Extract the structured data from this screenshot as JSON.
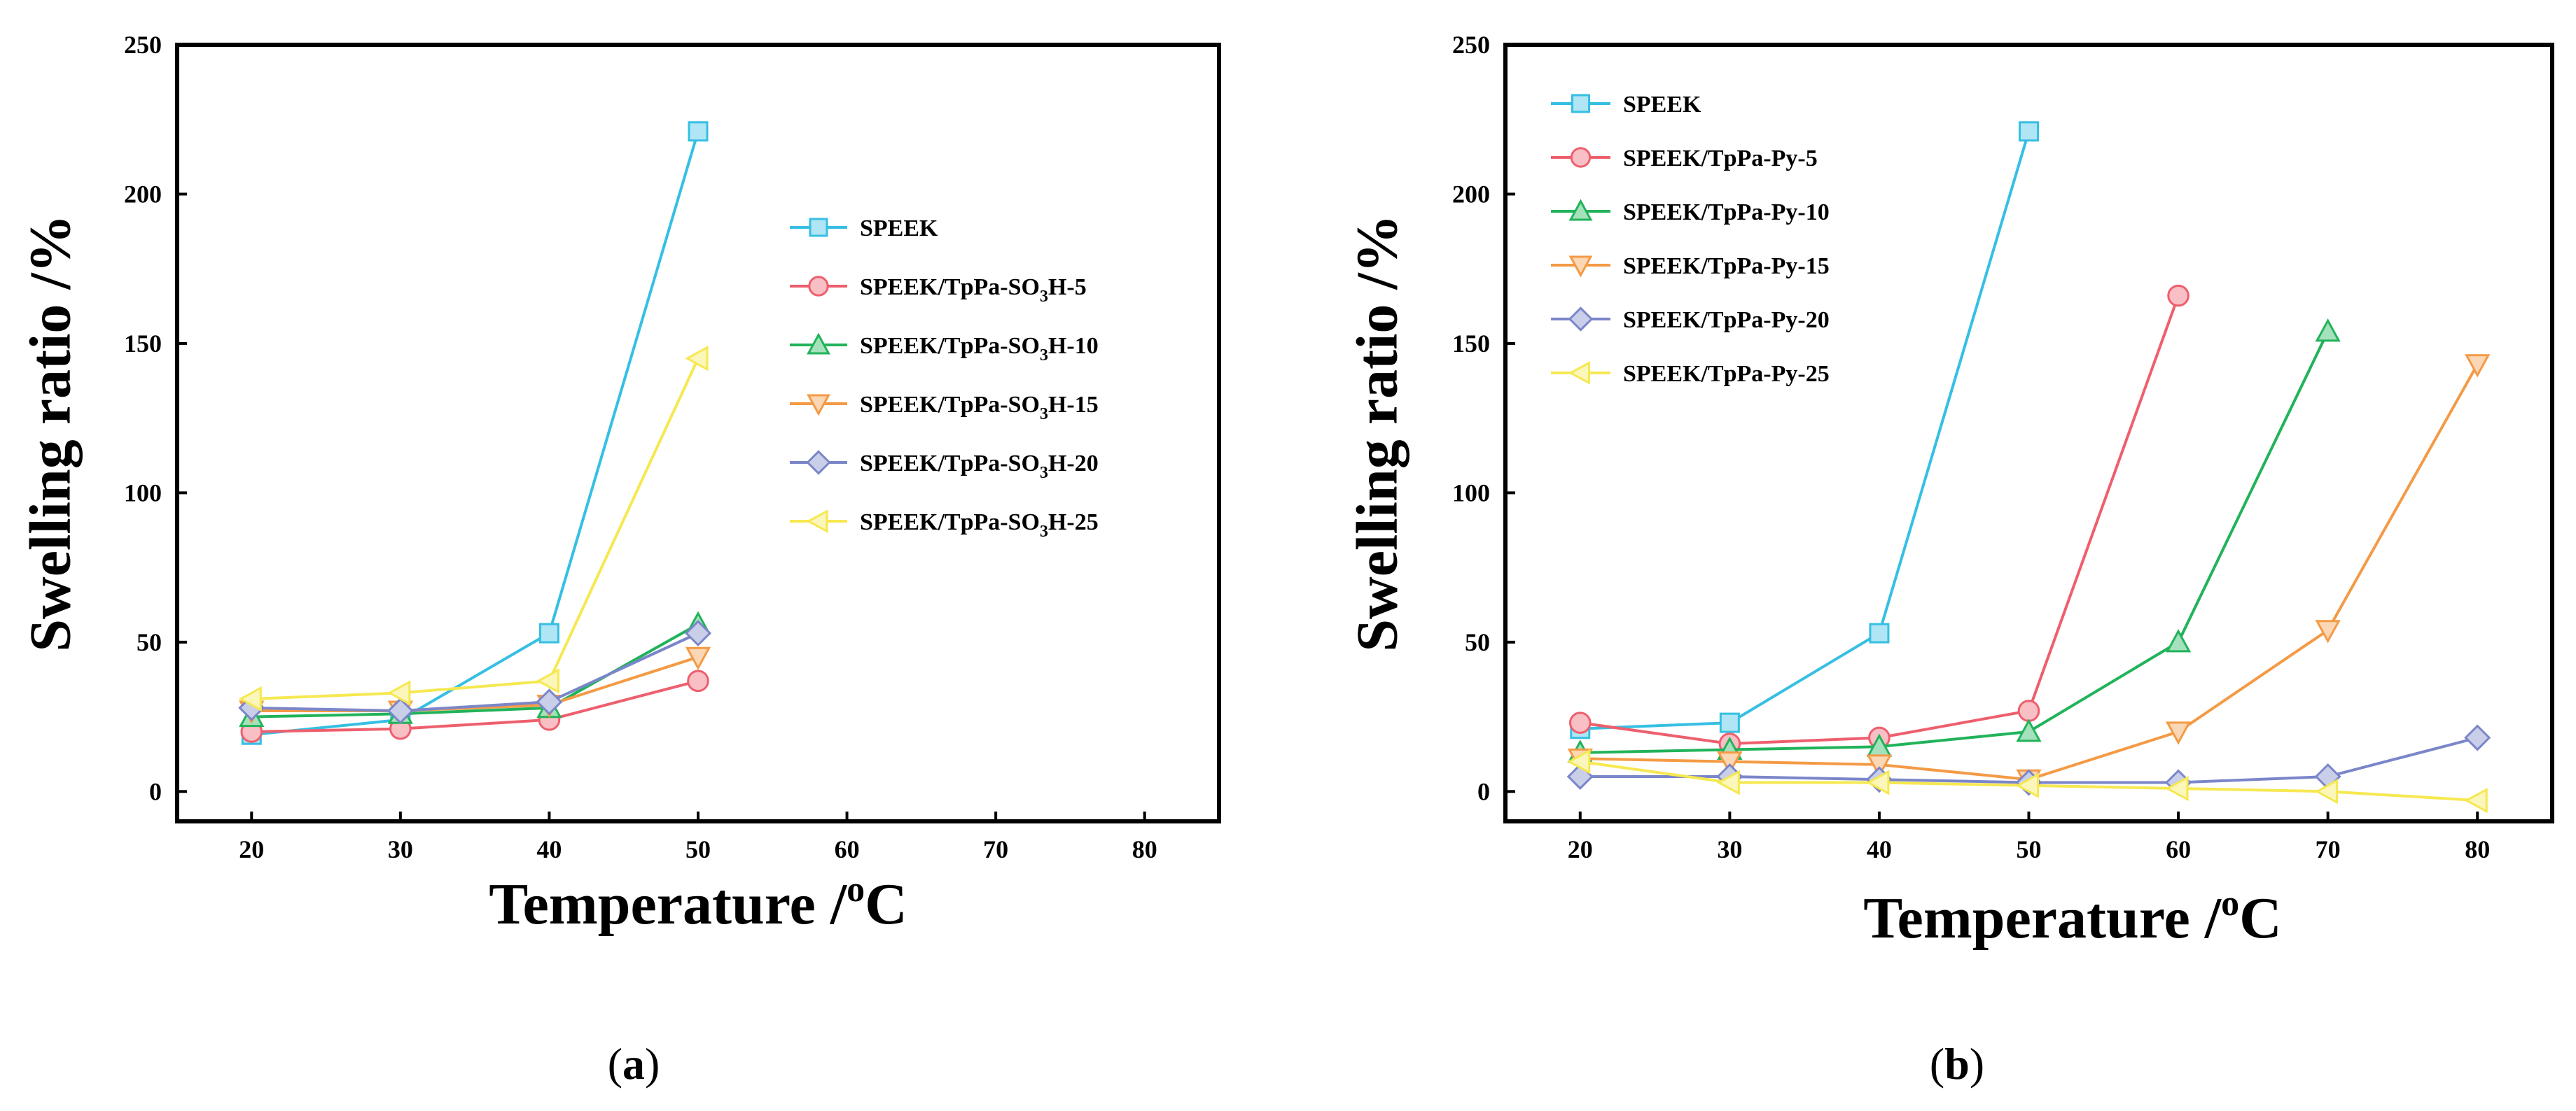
{
  "colors": {
    "SPEEK": "#36bfe3",
    "s5": "#ee5f6d",
    "s10": "#21b35a",
    "s15": "#f49a45",
    "s20": "#7b86c9",
    "s25": "#f6e851",
    "axis": "#000000"
  },
  "chart_data": [
    {
      "type": "line",
      "panel_label": {
        "open": "(",
        "letter": "a",
        "close": ")"
      },
      "xlabel": {
        "main": "Temperature /",
        "sup": "o",
        "unit": "C"
      },
      "ylabel": "Swelling ratio /%",
      "xlim": [
        15,
        85
      ],
      "ylim": [
        -10,
        250
      ],
      "xticks": [
        20,
        30,
        40,
        50,
        60,
        70,
        80
      ],
      "yticks": [
        0,
        50,
        100,
        150,
        200,
        250
      ],
      "legend_position": "right-middle",
      "series": [
        {
          "name": "SPEEK",
          "label": {
            "pre": "SPEEK",
            "sub": "",
            "post": ""
          },
          "marker": "square",
          "color_key": "SPEEK",
          "x": [
            20,
            30,
            40,
            50
          ],
          "values": [
            19,
            24,
            53,
            221
          ]
        },
        {
          "name": "SPEEK/TpPa-SO3H-5",
          "label": {
            "pre": "SPEEK/TpPa-SO",
            "sub": "3",
            "post": "H-5"
          },
          "marker": "circle",
          "color_key": "s5",
          "x": [
            20,
            30,
            40,
            50
          ],
          "values": [
            20,
            21,
            24,
            37
          ]
        },
        {
          "name": "SPEEK/TpPa-SO3H-10",
          "label": {
            "pre": "SPEEK/TpPa-SO",
            "sub": "3",
            "post": "H-10"
          },
          "marker": "triangle-up",
          "color_key": "s10",
          "x": [
            20,
            30,
            40,
            50
          ],
          "values": [
            25,
            26,
            28,
            56
          ]
        },
        {
          "name": "SPEEK/TpPa-SO3H-15",
          "label": {
            "pre": "SPEEK/TpPa-SO",
            "sub": "3",
            "post": "H-15"
          },
          "marker": "triangle-down",
          "color_key": "s15",
          "x": [
            20,
            30,
            40,
            50
          ],
          "values": [
            27,
            27,
            29,
            45
          ]
        },
        {
          "name": "SPEEK/TpPa-SO3H-20",
          "label": {
            "pre": "SPEEK/TpPa-SO",
            "sub": "3",
            "post": "H-20"
          },
          "marker": "diamond",
          "color_key": "s20",
          "x": [
            20,
            30,
            40,
            50
          ],
          "values": [
            28,
            27,
            30,
            53
          ]
        },
        {
          "name": "SPEEK/TpPa-SO3H-25",
          "label": {
            "pre": "SPEEK/TpPa-SO",
            "sub": "3",
            "post": "H-25"
          },
          "marker": "triangle-left",
          "color_key": "s25",
          "x": [
            20,
            30,
            40,
            50
          ],
          "values": [
            31,
            33,
            37,
            145
          ]
        }
      ]
    },
    {
      "type": "line",
      "panel_label": {
        "open": "(",
        "letter": "b",
        "close": ")"
      },
      "xlabel": {
        "main": "Temperature /",
        "sup": "o",
        "unit": "C"
      },
      "ylabel": "Swelling ratio /%",
      "xlim": [
        15,
        85
      ],
      "ylim": [
        -10,
        250
      ],
      "xticks": [
        20,
        30,
        40,
        50,
        60,
        70,
        80
      ],
      "yticks": [
        0,
        50,
        100,
        150,
        200,
        250
      ],
      "legend_position": "top-left",
      "series": [
        {
          "name": "SPEEK",
          "label": {
            "pre": "SPEEK",
            "sub": "",
            "post": ""
          },
          "marker": "square",
          "color_key": "SPEEK",
          "x": [
            20,
            30,
            40,
            50
          ],
          "values": [
            21,
            23,
            53,
            221
          ]
        },
        {
          "name": "SPEEK/TpPa-Py-5",
          "label": {
            "pre": "SPEEK/TpPa-Py-5",
            "sub": "",
            "post": ""
          },
          "marker": "circle",
          "color_key": "s5",
          "x": [
            20,
            30,
            40,
            50,
            60
          ],
          "values": [
            23,
            16,
            18,
            27,
            166
          ]
        },
        {
          "name": "SPEEK/TpPa-Py-10",
          "label": {
            "pre": "SPEEK/TpPa-Py-10",
            "sub": "",
            "post": ""
          },
          "marker": "triangle-up",
          "color_key": "s10",
          "x": [
            20,
            30,
            40,
            50,
            60,
            70
          ],
          "values": [
            13,
            14,
            15,
            20,
            50,
            154
          ]
        },
        {
          "name": "SPEEK/TpPa-Py-15",
          "label": {
            "pre": "SPEEK/TpPa-Py-15",
            "sub": "",
            "post": ""
          },
          "marker": "triangle-down",
          "color_key": "s15",
          "x": [
            20,
            30,
            40,
            50,
            60,
            70,
            80
          ],
          "values": [
            11,
            10,
            9,
            4,
            20,
            54,
            143
          ]
        },
        {
          "name": "SPEEK/TpPa-Py-20",
          "label": {
            "pre": "SPEEK/TpPa-Py-20",
            "sub": "",
            "post": ""
          },
          "marker": "diamond",
          "color_key": "s20",
          "x": [
            20,
            30,
            40,
            50,
            60,
            70,
            80
          ],
          "values": [
            5,
            5,
            4,
            3,
            3,
            5,
            18
          ]
        },
        {
          "name": "SPEEK/TpPa-Py-25",
          "label": {
            "pre": "SPEEK/TpPa-Py-25",
            "sub": "",
            "post": ""
          },
          "marker": "triangle-left",
          "color_key": "s25",
          "x": [
            20,
            30,
            40,
            50,
            60,
            70,
            80
          ],
          "values": [
            10,
            3,
            3,
            2,
            1,
            0,
            -3
          ]
        }
      ]
    }
  ]
}
